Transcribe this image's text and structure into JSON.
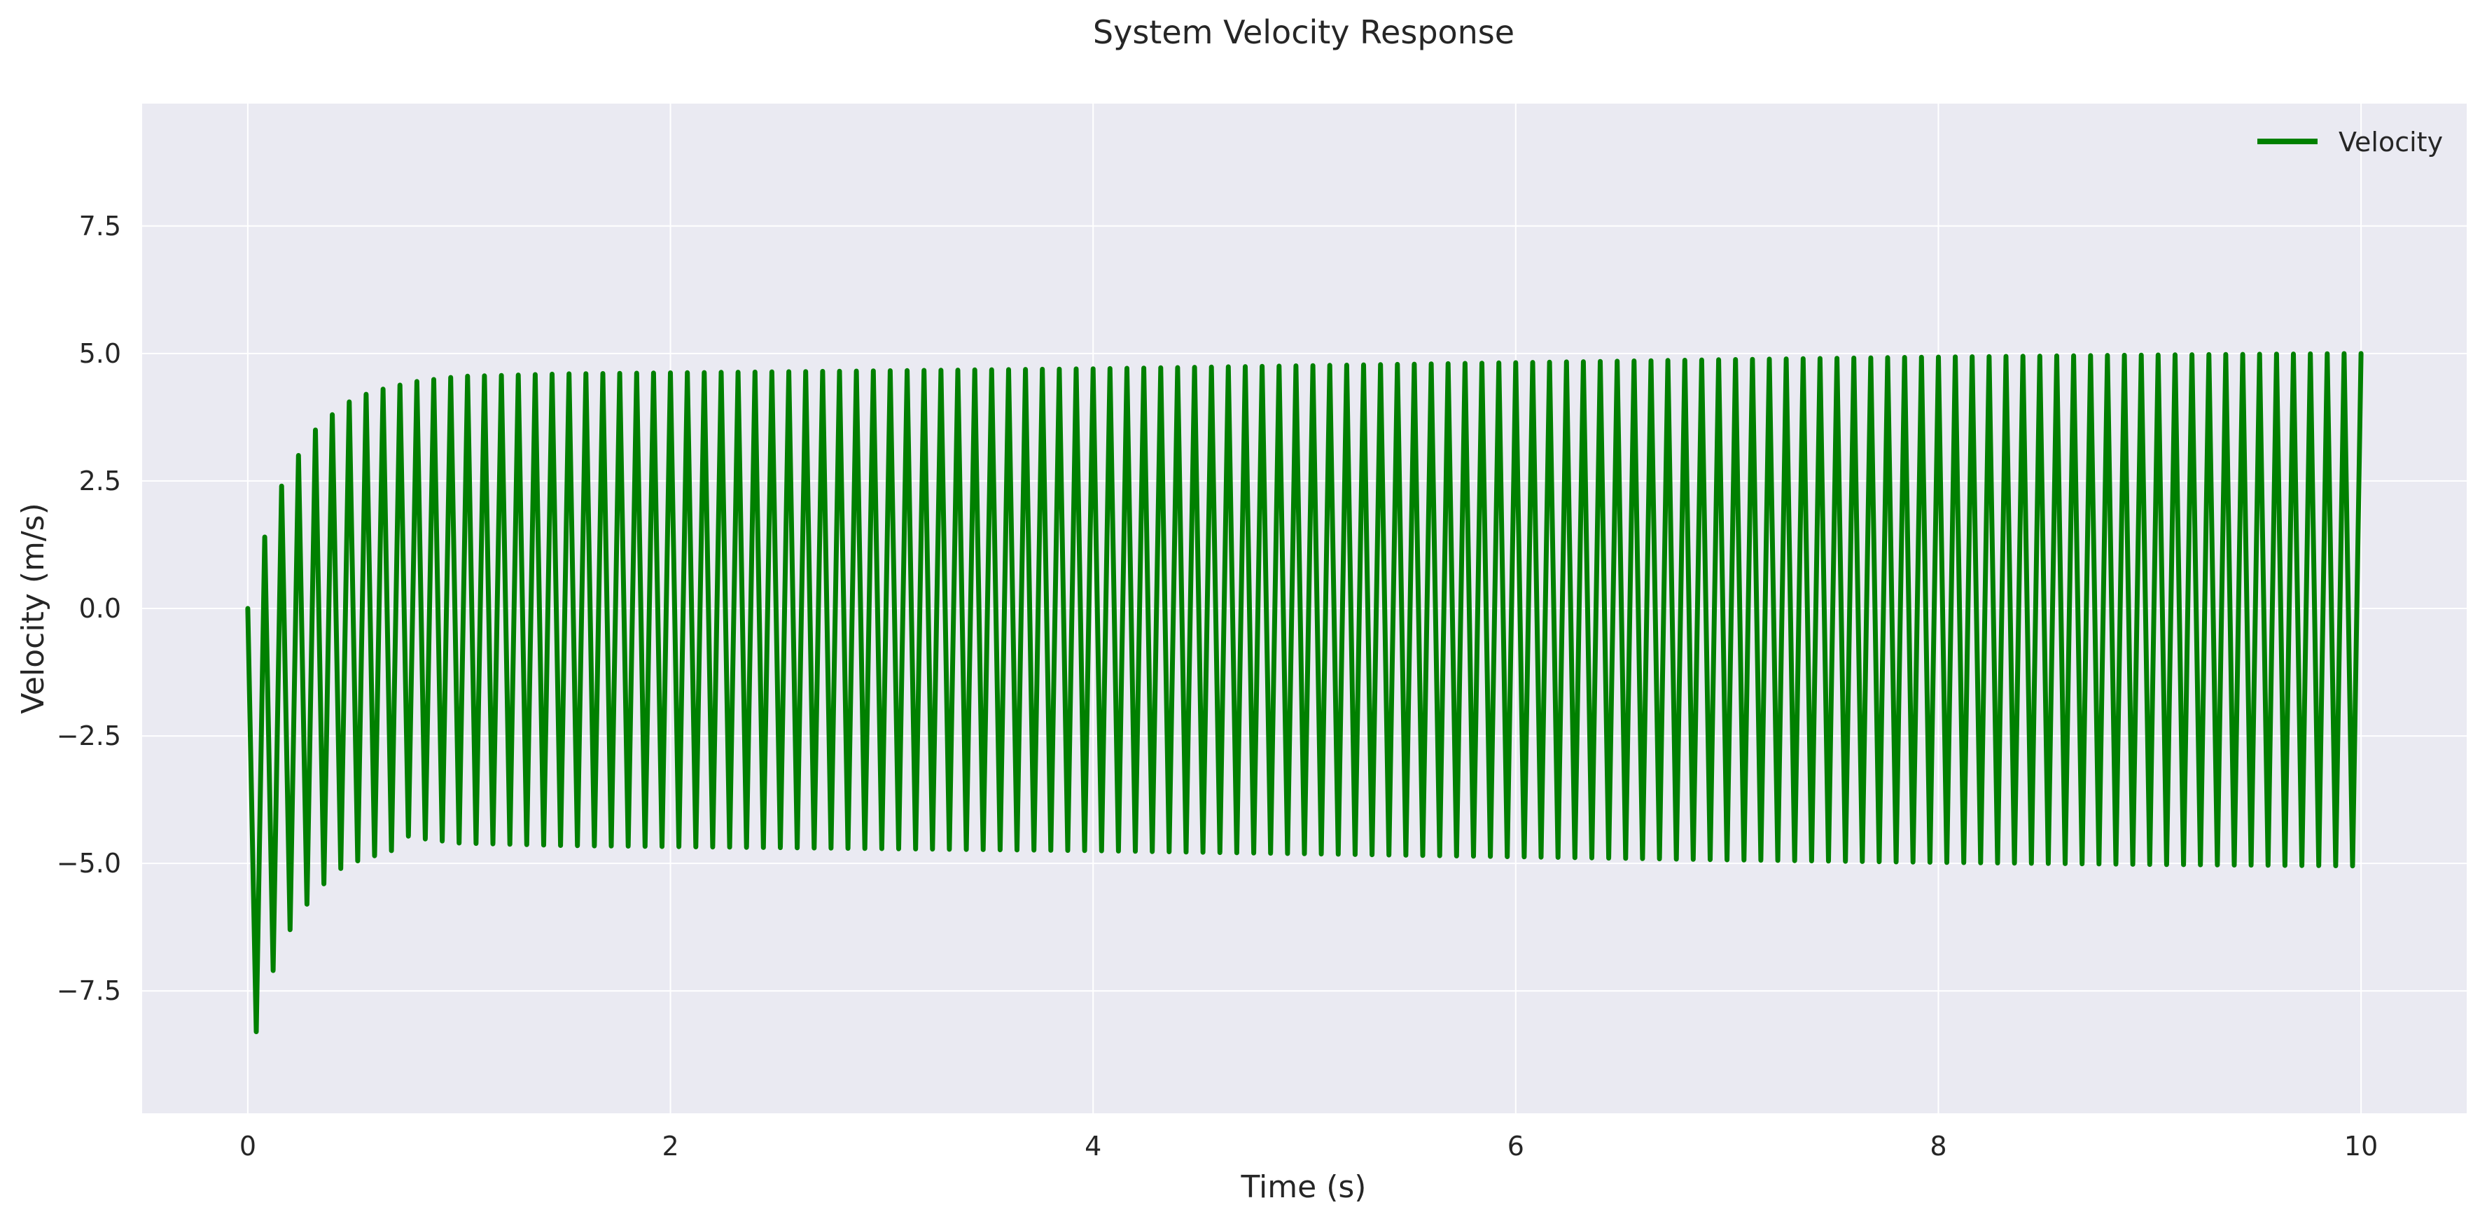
{
  "chart_data": {
    "type": "line",
    "title": "System Velocity Response",
    "xlabel": "Time (s)",
    "ylabel": "Velocity (m/s)",
    "xlim": [
      -0.5,
      10.5
    ],
    "ylim": [
      -9.9,
      9.9
    ],
    "xticks": [
      0,
      2,
      4,
      6,
      8,
      10
    ],
    "xtick_labels": [
      "0",
      "2",
      "4",
      "6",
      "8",
      "10"
    ],
    "yticks": [
      -7.5,
      -5.0,
      -2.5,
      0.0,
      2.5,
      5.0,
      7.5
    ],
    "ytick_labels": [
      "−7.5",
      "−5.0",
      "−2.5",
      "0.0",
      "2.5",
      "5.0",
      "7.5"
    ],
    "grid": true,
    "legend_position": "top-right",
    "series": [
      {
        "name": "Velocity",
        "color": "#008000",
        "description_of_shape": "oscillating square-like wave, period about 0.08 s",
        "x": [
          0,
          0.04,
          0.08,
          0.12,
          0.16,
          0.2,
          0.24,
          0.28,
          0.32,
          0.36,
          0.4,
          0.44,
          0.48,
          0.52,
          0.56,
          0.6,
          0.64,
          0.68,
          0.72,
          0.76,
          0.8,
          1.0,
          1.5,
          2.0,
          3.0,
          4.0,
          5.0,
          6.0,
          7.0,
          8.0,
          9.0,
          10.0
        ],
        "y": [
          0,
          -8.3,
          1.4,
          -7.1,
          2.4,
          -6.3,
          3.0,
          -5.8,
          3.5,
          -5.4,
          3.8,
          -5.1,
          4.05,
          -4.95,
          4.2,
          -4.85,
          4.3,
          -4.75,
          4.38,
          -4.7,
          4.45,
          4.55,
          4.6,
          4.62,
          4.66,
          4.7,
          4.76,
          4.82,
          4.88,
          4.93,
          4.97,
          5.0
        ]
      }
    ]
  },
  "colors": {
    "plot_background": "#eaeaf2",
    "grid": "#ffffff",
    "line": "#008000",
    "text": "#262626"
  }
}
